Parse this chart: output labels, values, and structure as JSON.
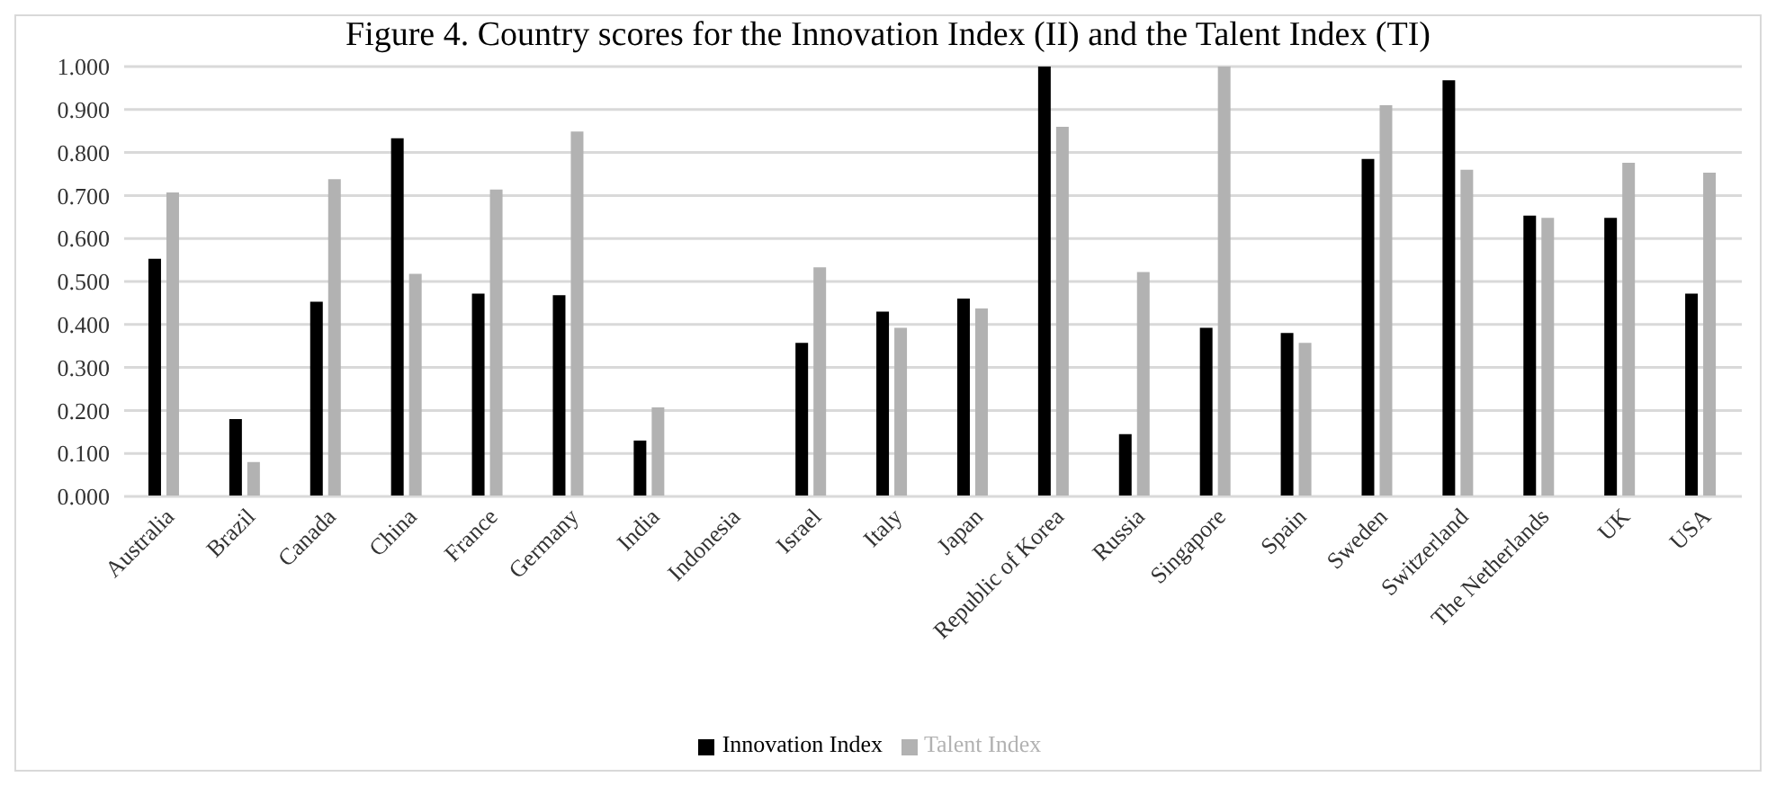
{
  "chart_data": {
    "type": "bar",
    "title": "Figure 4. Country scores for the Innovation Index (II) and the Talent Index (TI)",
    "categories": [
      "Australia",
      "Brazil",
      "Canada",
      "China",
      "France",
      "Germany",
      "India",
      "Indonesia",
      "Israel",
      "Italy",
      "Japan",
      "Republic of Korea",
      "Russia",
      "Singapore",
      "Spain",
      "Sweden",
      "Switzerland",
      "The Netherlands",
      "UK",
      "USA"
    ],
    "series": [
      {
        "name": "Innovation Index",
        "color": "#000000",
        "values": [
          0.553,
          0.18,
          0.453,
          0.833,
          0.472,
          0.468,
          0.13,
          null,
          0.357,
          0.43,
          0.46,
          1.0,
          0.145,
          0.392,
          0.38,
          0.785,
          0.968,
          0.653,
          0.648,
          0.472
        ]
      },
      {
        "name": "Talent Index",
        "color": "#b2b2b2",
        "values": [
          0.707,
          0.08,
          0.738,
          0.518,
          0.714,
          0.849,
          0.207,
          null,
          0.533,
          0.392,
          0.437,
          0.86,
          0.522,
          1.0,
          0.357,
          0.91,
          0.76,
          0.648,
          0.776,
          0.753
        ]
      }
    ],
    "ylim": [
      0,
      1
    ],
    "yticks": [
      {
        "value": 0,
        "label": "0.000"
      },
      {
        "value": 0.1,
        "label": "0.100"
      },
      {
        "value": 0.2,
        "label": "0.200"
      },
      {
        "value": 0.3,
        "label": "0.300"
      },
      {
        "value": 0.4,
        "label": "0.400"
      },
      {
        "value": 0.5,
        "label": "0.500"
      },
      {
        "value": 0.6,
        "label": "0.600"
      },
      {
        "value": 0.7,
        "label": "0.700"
      },
      {
        "value": 0.8,
        "label": "0.800"
      },
      {
        "value": 0.9,
        "label": "0.900"
      },
      {
        "value": 1,
        "label": "1.000"
      }
    ],
    "grid": "y",
    "legend": "bottom"
  }
}
